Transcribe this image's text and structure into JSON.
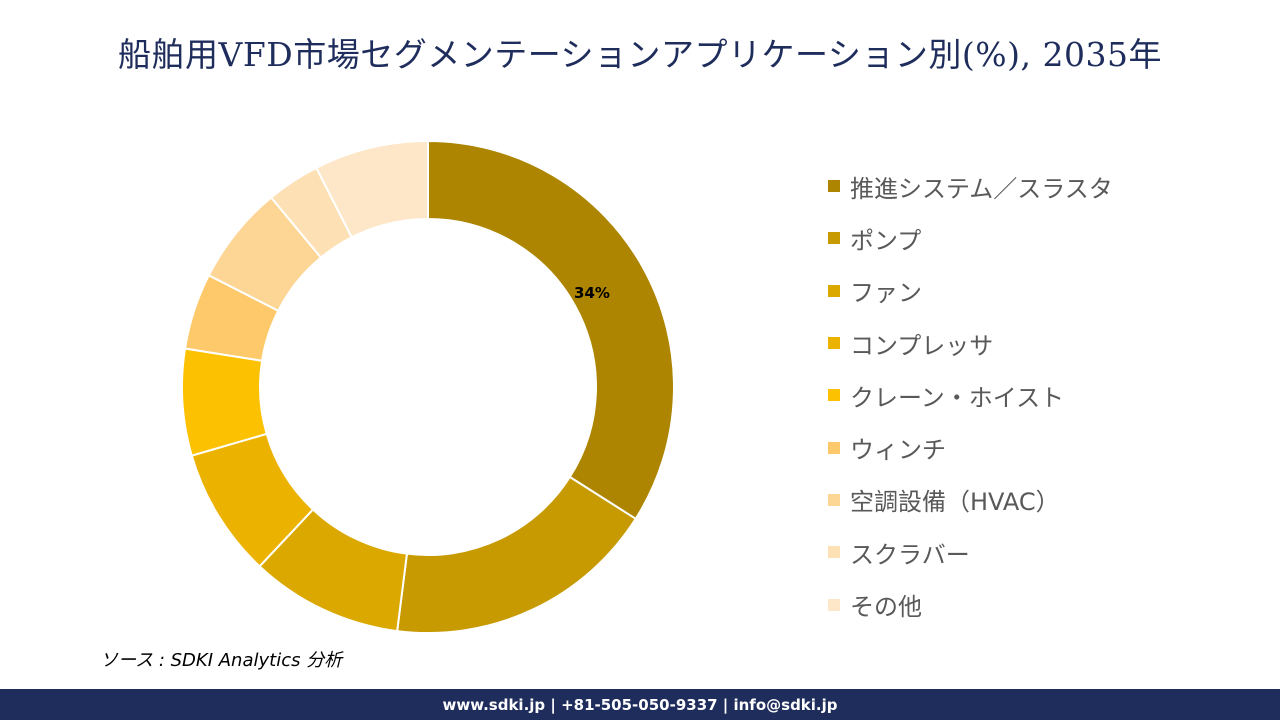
{
  "title": "船舶用VFD市場セグメンテーションアプリケーション別(%), 2035年",
  "source": "ソース : SDKI Analytics 分析",
  "footer": "www.sdki.jp | +81-505-050-9337 | info@sdki.jp",
  "chart_data": {
    "type": "donut",
    "legend_position": "right",
    "series": [
      {
        "name": "推進システム／スラスタ",
        "value": 34,
        "color": "#ad8500",
        "label": "34%"
      },
      {
        "name": "ポンプ",
        "value": 18,
        "color": "#c69a00"
      },
      {
        "name": "ファン",
        "value": 10,
        "color": "#dba800"
      },
      {
        "name": "コンプレッサ",
        "value": 8.5,
        "color": "#ecb200"
      },
      {
        "name": "クレーン・ホイスト",
        "value": 7,
        "color": "#fcc100"
      },
      {
        "name": "ウィンチ",
        "value": 5,
        "color": "#fdc96a"
      },
      {
        "name": "空調設備（HVAC）",
        "value": 6.5,
        "color": "#fdd594"
      },
      {
        "name": "スクラバー",
        "value": 3.5,
        "color": "#fde0b3"
      },
      {
        "name": "その他",
        "value": 7.5,
        "color": "#fde7c8"
      }
    ]
  }
}
